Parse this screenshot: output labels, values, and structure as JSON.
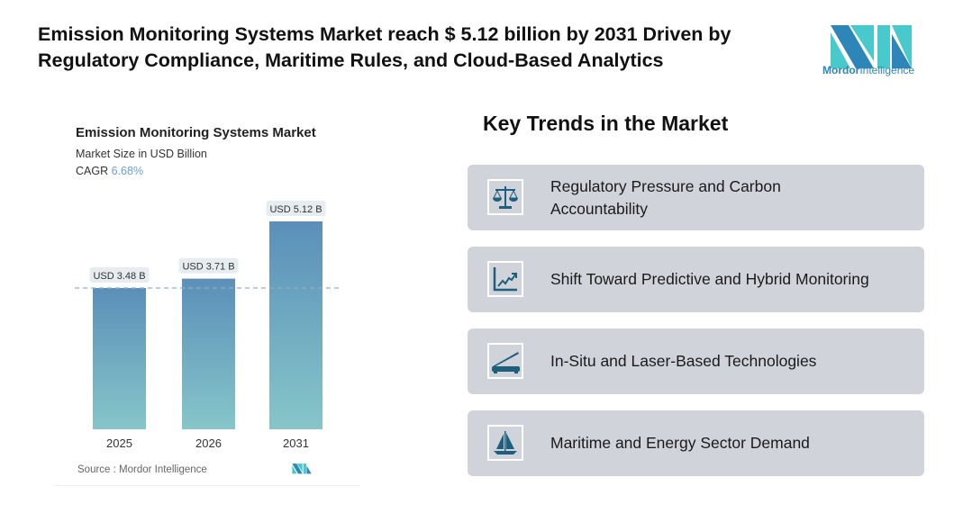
{
  "headline": "Emission Monitoring Systems Market reach $ 5.12 billion by 2031 Driven by Regulatory Compliance, Maritime Rules, and Cloud-Based Analytics",
  "logo": {
    "text_bold": "Mordor",
    "text_regular": "Intelligence"
  },
  "chart_data": {
    "type": "bar",
    "title": "Emission Monitoring Systems Market",
    "subtitle": "Market Size in USD Billion",
    "cagr_label": "CAGR",
    "cagr_value": "6.68%",
    "categories": [
      "2025",
      "2026",
      "2031"
    ],
    "values": [
      3.48,
      3.71,
      5.12
    ],
    "data_labels": [
      "USD 3.48 B",
      "USD 3.71 B",
      "USD 5.12 B"
    ],
    "ylim": [
      0,
      5.12
    ],
    "reference_line": 3.48,
    "source": "Source :  Mordor Intelligence",
    "colors": {
      "bar_top": "#5b8fb9",
      "bar_bottom": "#86c6c9",
      "label_bg": "#e6ecef"
    }
  },
  "trends": {
    "title": "Key Trends in the Market",
    "items": [
      {
        "label": "Regulatory Pressure and Carbon Accountability",
        "icon": "scales-icon"
      },
      {
        "label": "Shift Toward Predictive and Hybrid Monitoring",
        "icon": "trend-chart-icon"
      },
      {
        "label": "In-Situ and Laser-Based Technologies",
        "icon": "laser-device-icon"
      },
      {
        "label": "Maritime and Energy Sector Demand",
        "icon": "sailboat-icon"
      }
    ],
    "icon_color": "#1f5f7e",
    "card_color": "#d0d4da"
  }
}
